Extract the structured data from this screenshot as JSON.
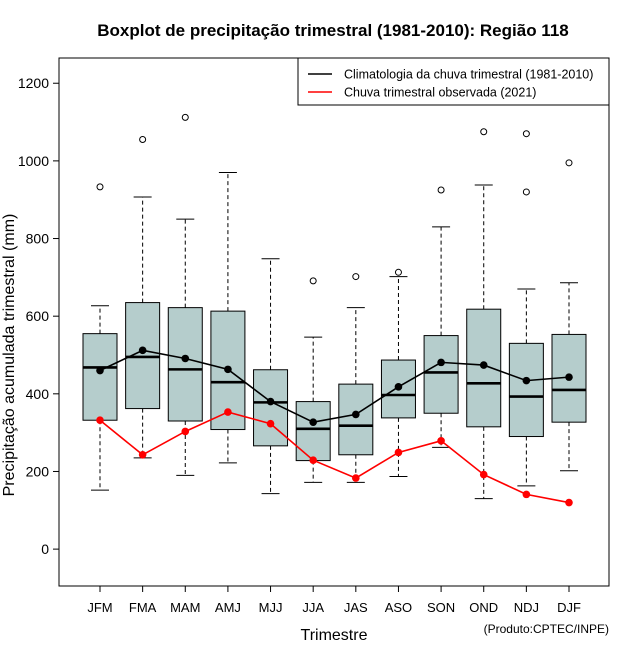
{
  "chart_data": {
    "type": "boxplot",
    "title": "Boxplot de precipitação trimestral (1981-2010): Região 118",
    "xlabel": "Trimestre",
    "ylabel": "Precipitação acumulada trimestral (mm)",
    "credit": "(Produto:CPTEC/INPE)",
    "ylim": [
      -95,
      1265
    ],
    "yticks": [
      0,
      200,
      400,
      600,
      800,
      1000,
      1200
    ],
    "categories": [
      "JFM",
      "FMA",
      "MAM",
      "AMJ",
      "MJJ",
      "JJA",
      "JAS",
      "ASO",
      "SON",
      "OND",
      "NDJ",
      "DJF"
    ],
    "boxes": [
      {
        "whisker_low": 152,
        "q1": 332,
        "median": 468,
        "q3": 555,
        "whisker_high": 627,
        "outliers": [
          933
        ]
      },
      {
        "whisker_low": 235,
        "q1": 362,
        "median": 495,
        "q3": 635,
        "whisker_high": 907,
        "outliers": [
          1055
        ]
      },
      {
        "whisker_low": 190,
        "q1": 330,
        "median": 463,
        "q3": 622,
        "whisker_high": 850,
        "outliers": [
          1112
        ]
      },
      {
        "whisker_low": 222,
        "q1": 308,
        "median": 430,
        "q3": 613,
        "whisker_high": 970,
        "outliers": []
      },
      {
        "whisker_low": 143,
        "q1": 266,
        "median": 378,
        "q3": 462,
        "whisker_high": 748,
        "outliers": []
      },
      {
        "whisker_low": 172,
        "q1": 228,
        "median": 310,
        "q3": 380,
        "whisker_high": 546,
        "outliers": [
          691
        ]
      },
      {
        "whisker_low": 172,
        "q1": 243,
        "median": 318,
        "q3": 425,
        "whisker_high": 622,
        "outliers": [
          702
        ]
      },
      {
        "whisker_low": 187,
        "q1": 338,
        "median": 397,
        "q3": 487,
        "whisker_high": 702,
        "outliers": [
          713
        ]
      },
      {
        "whisker_low": 262,
        "q1": 350,
        "median": 455,
        "q3": 550,
        "whisker_high": 830,
        "outliers": [
          925
        ]
      },
      {
        "whisker_low": 130,
        "q1": 315,
        "median": 427,
        "q3": 618,
        "whisker_high": 938,
        "outliers": [
          1075
        ]
      },
      {
        "whisker_low": 163,
        "q1": 290,
        "median": 393,
        "q3": 530,
        "whisker_high": 670,
        "outliers": [
          1070,
          920
        ]
      },
      {
        "whisker_low": 202,
        "q1": 327,
        "median": 410,
        "q3": 553,
        "whisker_high": 686,
        "outliers": [
          995
        ]
      }
    ],
    "series": [
      {
        "name": "Climatologia da chuva trimestral (1981-2010)",
        "color": "#000000",
        "values": [
          460,
          512,
          491,
          463,
          380,
          327,
          347,
          418,
          481,
          474,
          434,
          443
        ]
      },
      {
        "name": "Chuva trimestral observada (2021)",
        "color": "#ff0000",
        "values": [
          332,
          243,
          303,
          353,
          323,
          229,
          183,
          249,
          279,
          192,
          141,
          120
        ]
      }
    ],
    "box_fill": "#b5cdcc",
    "legend_position": "top-right"
  }
}
